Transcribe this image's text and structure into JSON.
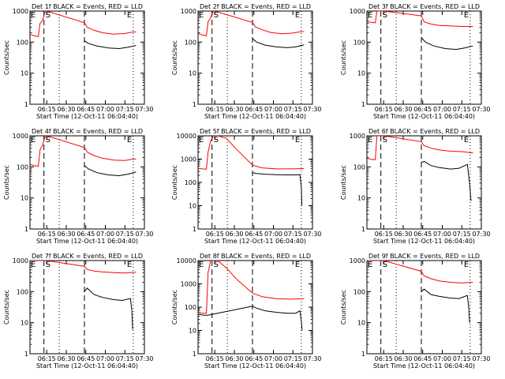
{
  "colors": {
    "events": "#000000",
    "lld": "#ff0000",
    "axis": "#000000"
  },
  "common": {
    "ylabel": "Counts/sec",
    "xlabel": "Start Time (12-Oct-11 06:04:40)",
    "xtick_labels": [
      "06:15",
      "06:30",
      "06:45",
      "07:00",
      "07:15",
      "07:30"
    ],
    "ytick_labels": [
      "1",
      "10",
      "100",
      "1000"
    ],
    "ytick_labels_wide": [
      "1",
      "10",
      "100",
      "1000",
      "10000"
    ],
    "marker_E": "E",
    "marker_S": "S",
    "time_range_min": [
      0,
      41
    ],
    "dashed_lines_min": [
      5,
      19.5
    ],
    "dotted_lines_min": [
      10.5,
      37
    ]
  },
  "chart_data": [
    {
      "type": "line",
      "title": "Det 1f BLACK = Events, RED = LLD",
      "yscale": "log",
      "ylim": [
        1,
        1000
      ],
      "series": [
        {
          "name": "LLD",
          "color": "#ff0000",
          "x": [
            0,
            1.5,
            3,
            3.6,
            4.5,
            5.5,
            6,
            19.5,
            20.5,
            23,
            26,
            30,
            34,
            36.5,
            38
          ],
          "y": [
            180,
            160,
            150,
            400,
            500,
            1000,
            1000,
            420,
            300,
            240,
            200,
            180,
            190,
            210,
            215
          ]
        },
        {
          "name": "Events",
          "color": "#000000",
          "x": [
            19.5,
            21,
            24,
            28,
            32,
            35,
            38
          ],
          "y": [
            110,
            90,
            75,
            65,
            62,
            68,
            78
          ]
        }
      ]
    },
    {
      "type": "line",
      "title": "Det 2f BLACK = Events, RED = LLD",
      "yscale": "log",
      "ylim": [
        1,
        1000
      ],
      "series": [
        {
          "name": "LLD",
          "color": "#ff0000",
          "x": [
            0,
            1.5,
            3,
            3.6,
            4.5,
            5.5,
            6,
            19.5,
            20.5,
            23,
            26,
            30,
            34,
            36.5,
            38
          ],
          "y": [
            190,
            170,
            160,
            450,
            600,
            1000,
            1000,
            430,
            310,
            250,
            205,
            185,
            195,
            215,
            220
          ]
        },
        {
          "name": "Events",
          "color": "#000000",
          "x": [
            19.5,
            21,
            24,
            28,
            32,
            35,
            38
          ],
          "y": [
            130,
            100,
            80,
            70,
            66,
            70,
            82
          ]
        }
      ]
    },
    {
      "type": "line",
      "title": "Det 3f BLACK = Events, RED = LLD",
      "yscale": "log",
      "ylim": [
        1,
        1000
      ],
      "series": [
        {
          "name": "LLD",
          "color": "#ff0000",
          "x": [
            0,
            1.5,
            3,
            3.6,
            4.5,
            5.5,
            6,
            19.5,
            20.5,
            23,
            26,
            30,
            34,
            38
          ],
          "y": [
            460,
            430,
            420,
            1000,
            1000,
            1000,
            1000,
            700,
            450,
            380,
            345,
            330,
            320,
            320
          ]
        },
        {
          "name": "Events",
          "color": "#000000",
          "x": [
            19.5,
            21,
            24,
            28,
            32,
            35,
            38
          ],
          "y": [
            140,
            100,
            75,
            62,
            58,
            65,
            75
          ]
        }
      ]
    },
    {
      "type": "line",
      "title": "Det 4f BLACK = Events, RED = LLD",
      "yscale": "log",
      "ylim": [
        1,
        1000
      ],
      "series": [
        {
          "name": "LLD",
          "color": "#ff0000",
          "x": [
            0,
            1.5,
            3,
            3.6,
            4.5,
            5.5,
            6,
            19.5,
            20.5,
            23,
            26,
            30,
            34,
            36.5,
            38
          ],
          "y": [
            120,
            110,
            105,
            350,
            500,
            1000,
            1000,
            420,
            300,
            230,
            190,
            165,
            160,
            175,
            180
          ]
        },
        {
          "name": "Events",
          "color": "#000000",
          "x": [
            19.5,
            21,
            24,
            28,
            32,
            35,
            38
          ],
          "y": [
            110,
            85,
            65,
            55,
            52,
            58,
            68
          ]
        }
      ]
    },
    {
      "type": "line",
      "title": "Det 5f BLACK = Events, RED = LLD",
      "yscale": "log",
      "ylim": [
        1,
        10000
      ],
      "series": [
        {
          "name": "LLD",
          "color": "#ff0000",
          "x": [
            0,
            1.5,
            3,
            3.6,
            4.5,
            5.5,
            7,
            10,
            14,
            19.5,
            23,
            28,
            33,
            38
          ],
          "y": [
            400,
            380,
            370,
            2000,
            6000,
            10000,
            10000,
            8000,
            2500,
            550,
            420,
            380,
            380,
            390
          ]
        },
        {
          "name": "Events",
          "color": "#000000",
          "x": [
            19.5,
            21,
            24,
            28,
            32,
            35,
            36.5,
            37,
            37.2
          ],
          "y": [
            260,
            240,
            225,
            215,
            210,
            210,
            215,
            60,
            10
          ]
        }
      ]
    },
    {
      "type": "line",
      "title": "Det 6f BLACK = Events, RED = LLD",
      "yscale": "log",
      "ylim": [
        1,
        1000
      ],
      "series": [
        {
          "name": "LLD",
          "color": "#ff0000",
          "x": [
            0,
            1.5,
            3,
            3.6,
            4.5,
            5.5,
            6,
            19.5,
            20.5,
            23,
            26,
            30,
            34,
            38
          ],
          "y": [
            190,
            175,
            170,
            1000,
            1000,
            1000,
            1000,
            650,
            480,
            400,
            350,
            320,
            310,
            280
          ]
        },
        {
          "name": "Events",
          "color": "#000000",
          "x": [
            19.5,
            20.5,
            23,
            26,
            30,
            33,
            36,
            36.8,
            37.3
          ],
          "y": [
            140,
            150,
            110,
            95,
            85,
            90,
            120,
            30,
            8
          ]
        }
      ]
    },
    {
      "type": "line",
      "title": "Det 7f BLACK = Events, RED = LLD",
      "yscale": "log",
      "ylim": [
        1,
        1000
      ],
      "series": [
        {
          "name": "LLD",
          "color": "#ff0000",
          "x": [
            0,
            1.5,
            3,
            3.6,
            4.5,
            5.5,
            6,
            19.5,
            20.5,
            23,
            26,
            30,
            34,
            38
          ],
          "y": [
            1000,
            1000,
            1000,
            1000,
            1000,
            1000,
            1000,
            650,
            520,
            460,
            430,
            410,
            400,
            420
          ]
        },
        {
          "name": "Events",
          "color": "#000000",
          "x": [
            19.5,
            20.5,
            23,
            26,
            30,
            33,
            36,
            36.5,
            36.8
          ],
          "y": [
            100,
            130,
            80,
            65,
            55,
            52,
            60,
            25,
            6
          ]
        }
      ]
    },
    {
      "type": "line",
      "title": "Det 8f BLACK = Events, RED = LLD",
      "yscale": "log",
      "ylim": [
        1,
        10000
      ],
      "series": [
        {
          "name": "LLD",
          "color": "#ff0000",
          "x": [
            0,
            1.5,
            3,
            3.6,
            4.5,
            5.5,
            7,
            10,
            14,
            19.5,
            23,
            28,
            33,
            38
          ],
          "y": [
            60,
            55,
            55,
            3000,
            10000,
            10000,
            10000,
            5000,
            1500,
            400,
            280,
            230,
            220,
            230
          ]
        },
        {
          "name": "Events",
          "color": "#000000",
          "x": [
            0,
            2,
            3.5,
            19.5,
            21,
            24,
            28,
            32,
            35,
            36.5,
            37,
            37.3
          ],
          "y": [
            50,
            45,
            45,
            110,
            90,
            70,
            60,
            55,
            55,
            70,
            25,
            10
          ]
        }
      ]
    },
    {
      "type": "line",
      "title": "Det 9f BLACK = Events, RED = LLD",
      "yscale": "log",
      "ylim": [
        1,
        1000
      ],
      "series": [
        {
          "name": "LLD",
          "color": "#ff0000",
          "x": [
            0,
            1.5,
            3,
            3.6,
            4.5,
            5.5,
            6,
            19.5,
            20.5,
            23,
            26,
            30,
            34,
            38
          ],
          "y": [
            1000,
            1000,
            1000,
            1000,
            1000,
            1000,
            1000,
            450,
            320,
            260,
            220,
            200,
            190,
            200
          ]
        },
        {
          "name": "Events",
          "color": "#000000",
          "x": [
            19.5,
            20.5,
            23,
            26,
            30,
            33,
            36,
            36.5,
            36.8
          ],
          "y": [
            100,
            120,
            80,
            70,
            62,
            60,
            75,
            30,
            10
          ]
        }
      ]
    }
  ]
}
